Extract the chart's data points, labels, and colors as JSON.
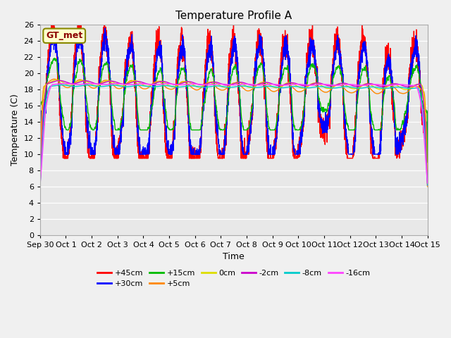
{
  "title": "Temperature Profile A",
  "xlabel": "Time",
  "ylabel": "Temperature (C)",
  "ylim": [
    0,
    26
  ],
  "yticks": [
    0,
    2,
    4,
    6,
    8,
    10,
    12,
    14,
    16,
    18,
    20,
    22,
    24,
    26
  ],
  "x_labels": [
    "Sep 30",
    "Oct 1",
    "Oct 2",
    "Oct 3",
    "Oct 4",
    "Oct 5",
    "Oct 6",
    "Oct 7",
    "Oct 8",
    "Oct 9",
    "Oct 10",
    "Oct 11",
    "Oct 12",
    "Oct 13",
    "Oct 14",
    "Oct 15"
  ],
  "series": [
    {
      "label": "+45cm",
      "color": "#FF0000",
      "lw": 1.0
    },
    {
      "label": "+30cm",
      "color": "#0000FF",
      "lw": 1.0
    },
    {
      "label": "+15cm",
      "color": "#00BB00",
      "lw": 1.0
    },
    {
      "label": "+5cm",
      "color": "#FF8800",
      "lw": 1.0
    },
    {
      "label": "0cm",
      "color": "#DDDD00",
      "lw": 1.0
    },
    {
      "label": "-2cm",
      "color": "#CC00CC",
      "lw": 1.0
    },
    {
      "label": "-8cm",
      "color": "#00CCCC",
      "lw": 1.0
    },
    {
      "label": "-16cm",
      "color": "#FF44FF",
      "lw": 1.2
    }
  ],
  "legend_label": "GT_met",
  "legend_box_facecolor": "#FFFFCC",
  "legend_box_edgecolor": "#888800",
  "plot_bg": "#E8E8E8",
  "fig_bg": "#F0F0F0",
  "grid_color": "#FFFFFF",
  "seed": 7
}
